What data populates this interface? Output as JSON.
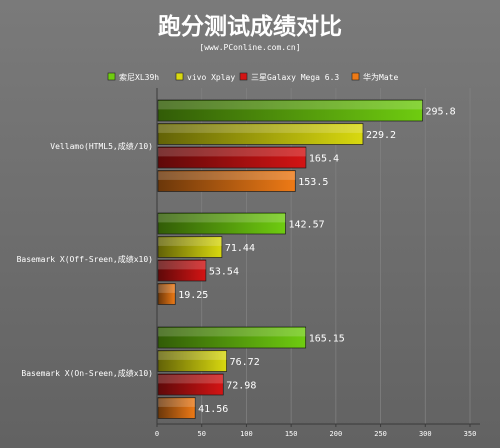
{
  "chart_data": {
    "type": "bar",
    "orientation": "horizontal",
    "title": "跑分测试成绩对比",
    "subtitle": "[www.PConline.com.cn]",
    "categories": [
      "Vellamo(HTML5,成绩/10)",
      "Basemark X(Off-Sreen,成绩x10)",
      "Basemark X(On-Sreen,成绩x10)"
    ],
    "series": [
      {
        "name": "索尼XL39h",
        "color": "#6fcc10",
        "values": [
          295.8,
          142.57,
          165.15
        ]
      },
      {
        "name": "vivo Xplay",
        "color": "#d9d90f",
        "values": [
          229.2,
          71.44,
          76.72
        ]
      },
      {
        "name": "三星Galaxy Mega 6.3",
        "color": "#d41414",
        "values": [
          165.4,
          53.54,
          72.98
        ]
      },
      {
        "name": "华为Mate",
        "color": "#ee7a16",
        "values": [
          153.5,
          19.25,
          41.56
        ]
      }
    ],
    "value_labels": [
      [
        "295.8",
        "229.2",
        "165.4",
        "153.5"
      ],
      [
        "142.57",
        "71.44",
        "53.54",
        "19.25"
      ],
      [
        "165.15",
        "76.72",
        "72.98",
        "41.56"
      ]
    ],
    "xlim": [
      0,
      350
    ],
    "xticks": [
      0,
      50,
      100,
      150,
      200,
      250,
      300,
      350
    ],
    "grid": true,
    "legend_position": "top"
  }
}
